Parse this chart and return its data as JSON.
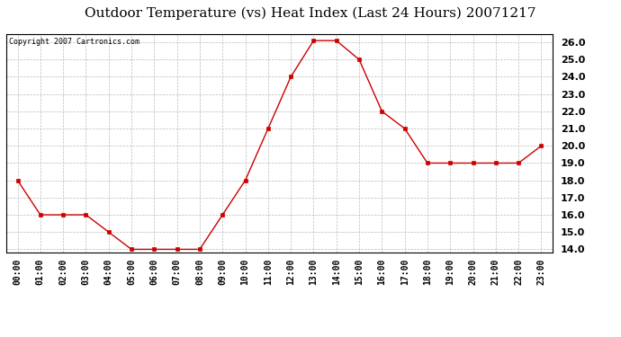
{
  "title": "Outdoor Temperature (vs) Heat Index (Last 24 Hours) 20071217",
  "copyright": "Copyright 2007 Cartronics.com",
  "x_labels": [
    "00:00",
    "01:00",
    "02:00",
    "03:00",
    "04:00",
    "05:00",
    "06:00",
    "07:00",
    "08:00",
    "09:00",
    "10:00",
    "11:00",
    "12:00",
    "13:00",
    "14:00",
    "15:00",
    "16:00",
    "17:00",
    "18:00",
    "19:00",
    "20:00",
    "21:00",
    "22:00",
    "23:00"
  ],
  "y_values": [
    18.0,
    16.0,
    16.0,
    16.0,
    15.0,
    14.0,
    14.0,
    14.0,
    14.0,
    16.0,
    18.0,
    21.0,
    24.0,
    26.1,
    26.1,
    25.0,
    22.0,
    21.0,
    19.0,
    19.0,
    19.0,
    19.0,
    19.0,
    20.0
  ],
  "line_color": "#cc0000",
  "marker": "s",
  "marker_size": 2.5,
  "ylim": [
    13.8,
    26.5
  ],
  "yticks": [
    14.0,
    15.0,
    16.0,
    17.0,
    18.0,
    19.0,
    20.0,
    21.0,
    22.0,
    23.0,
    24.0,
    25.0,
    26.0
  ],
  "grid_color": "#bbbbbb",
  "bg_color": "#ffffff",
  "title_fontsize": 11,
  "copyright_fontsize": 6,
  "tick_fontsize": 7,
  "ytick_fontsize": 8
}
